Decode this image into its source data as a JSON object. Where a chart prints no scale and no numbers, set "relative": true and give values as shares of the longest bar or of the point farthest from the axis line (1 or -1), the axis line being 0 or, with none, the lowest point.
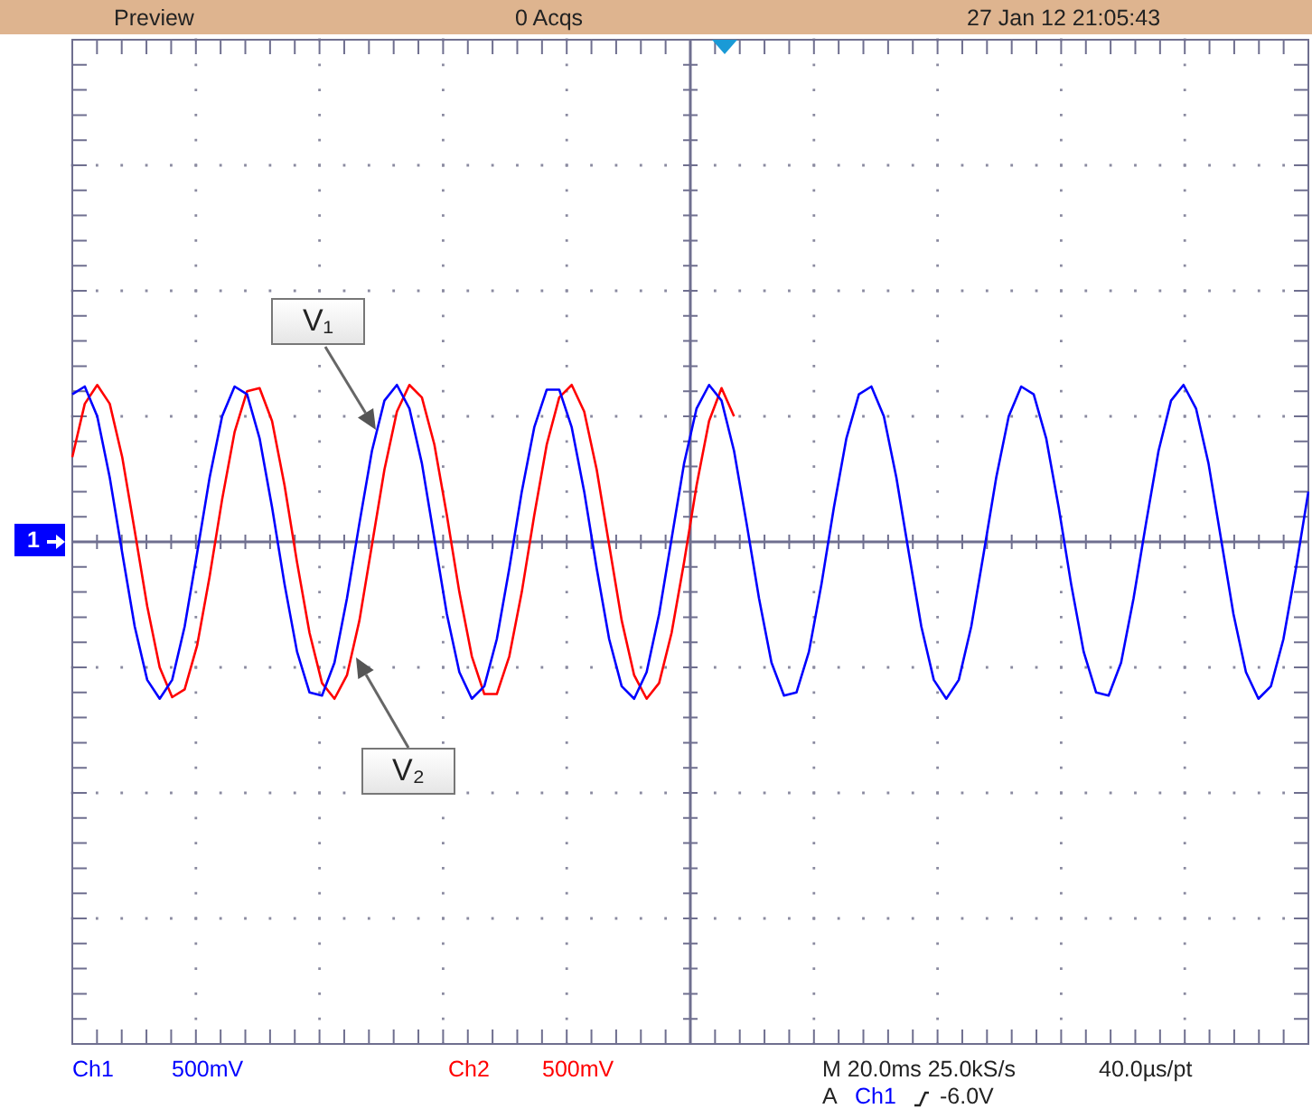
{
  "chart_data": {
    "type": "line",
    "relative": true,
    "categories": [
      null,
      null,
      null,
      null,
      null,
      null,
      null,
      null,
      null,
      null,
      null,
      null,
      null,
      null,
      null,
      null,
      null,
      null,
      null,
      null,
      null,
      null,
      null,
      null,
      null,
      null,
      null,
      null,
      null,
      null,
      null,
      null,
      null,
      null,
      null,
      null,
      null,
      null,
      null,
      null,
      null,
      null,
      null,
      null,
      null,
      null,
      null,
      null,
      null,
      null,
      null,
      null,
      null,
      null,
      null,
      null,
      null,
      null,
      null,
      null,
      null,
      null,
      null,
      null,
      null,
      null,
      null,
      null,
      null,
      null,
      null,
      null,
      null,
      null,
      null,
      null,
      null,
      null,
      null,
      null,
      null,
      null,
      null,
      null,
      null,
      null,
      null,
      null,
      null,
      null,
      null,
      null,
      null,
      null,
      null,
      null,
      null,
      null,
      null,
      null
    ],
    "series": [
      {
        "name": "V₁",
        "color": "#0000ff",
        "values": [
          0.94,
          0.99,
          0.8,
          0.41,
          -0.07,
          -0.54,
          -0.88,
          -1,
          -0.88,
          -0.54,
          -0.07,
          0.41,
          0.8,
          0.99,
          0.94,
          0.66,
          0.22,
          -0.27,
          -0.7,
          -0.96,
          -0.98,
          -0.77,
          -0.36,
          0.12,
          0.58,
          0.9,
          1,
          0.85,
          0.5,
          0.02,
          -0.46,
          -0.83,
          -1,
          -0.92,
          -0.62,
          -0.17,
          0.32,
          0.73,
          0.97,
          0.97,
          0.73,
          0.32,
          -0.17,
          -0.62,
          -0.92,
          -1,
          -0.83,
          -0.46,
          0.02,
          0.5,
          0.85,
          1,
          0.9,
          0.58,
          0.12,
          -0.36,
          -0.77,
          -0.98,
          -0.96,
          -0.7,
          -0.27,
          0.22,
          0.66,
          0.94,
          0.99,
          0.8,
          0.41,
          -0.07,
          -0.54,
          -0.88,
          -1,
          -0.88,
          -0.54,
          -0.07,
          0.41,
          0.8,
          0.99,
          0.94,
          0.66,
          0.22,
          -0.27,
          -0.7,
          -0.96,
          -0.98,
          -0.77,
          -0.36,
          0.12,
          0.58,
          0.9,
          1,
          0.85,
          0.5,
          0.02,
          -0.46,
          -0.83,
          -1,
          -0.92,
          -0.62,
          -0.17,
          0.32
        ]
      },
      {
        "name": "V₂",
        "color": "#ff0000",
        "values": [
          0.54,
          0.88,
          1,
          0.88,
          0.54,
          0.07,
          -0.41,
          -0.8,
          -0.99,
          -0.94,
          -0.66,
          -0.22,
          0.27,
          0.7,
          0.96,
          0.98,
          0.77,
          0.36,
          -0.13,
          -0.58,
          -0.9,
          -1,
          -0.85,
          -0.5,
          -0.02,
          0.46,
          0.83,
          1,
          0.92,
          0.62,
          0.17,
          -0.32,
          -0.73,
          -0.97,
          -0.97,
          -0.73,
          -0.32,
          0.17,
          0.62,
          0.92,
          1,
          0.83,
          0.46,
          -0.02,
          -0.5,
          -0.85,
          -1,
          -0.9,
          -0.58,
          -0.13,
          0.36,
          0.77,
          0.98,
          0.8,
          null,
          null,
          null,
          null,
          null,
          null,
          null,
          null,
          null,
          null,
          null,
          null,
          null,
          null,
          null,
          null,
          null,
          null,
          null,
          null,
          null,
          null,
          null,
          null,
          null,
          null,
          null,
          null,
          null,
          null,
          null,
          null,
          null,
          null,
          null,
          null,
          null,
          null,
          null,
          null,
          null,
          null,
          null,
          null,
          null,
          null
        ]
      }
    ],
    "annotations": [
      "Preview",
      "0 Acqs",
      "27 Jan 12 21:05:43",
      "1",
      "Ch1",
      "500mV",
      "Ch2",
      "500mV",
      "M 20.0ms 25.0kS/s",
      "40.0µs/pt",
      "A",
      "Ch1",
      "-6.0V"
    ],
    "grid": true,
    "legend": false,
    "marker": "none",
    "line_style": "solid"
  }
}
